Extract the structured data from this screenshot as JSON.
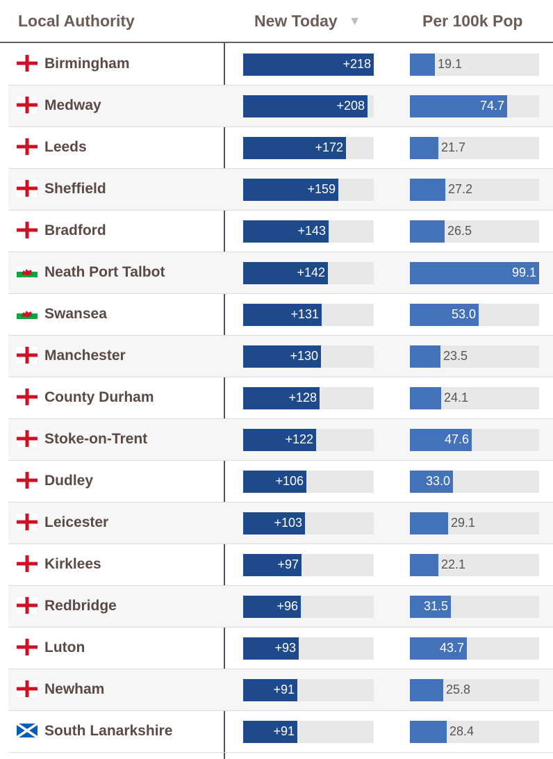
{
  "columns": {
    "authority": "Local Authority",
    "new_today": "New Today",
    "per_100k": "Per 100k Pop",
    "sort_icon": "▼"
  },
  "chart_data": {
    "type": "table",
    "columns": [
      "Local Authority",
      "New Today",
      "Per 100k Pop"
    ],
    "sorted_by": "New Today",
    "sort_order": "descending",
    "new_today_max": 218,
    "per_100k_max": 99.1,
    "rows": [
      {
        "nation": "england",
        "flag_icon": "england-flag-icon",
        "authority": "Birmingham",
        "new_today_label": "+218",
        "new_today": 218,
        "per_100k_label": "19.1",
        "per_100k": 19.1
      },
      {
        "nation": "england",
        "flag_icon": "england-flag-icon",
        "authority": "Medway",
        "new_today_label": "+208",
        "new_today": 208,
        "per_100k_label": "74.7",
        "per_100k": 74.7
      },
      {
        "nation": "england",
        "flag_icon": "england-flag-icon",
        "authority": "Leeds",
        "new_today_label": "+172",
        "new_today": 172,
        "per_100k_label": "21.7",
        "per_100k": 21.7
      },
      {
        "nation": "england",
        "flag_icon": "england-flag-icon",
        "authority": "Sheffield",
        "new_today_label": "+159",
        "new_today": 159,
        "per_100k_label": "27.2",
        "per_100k": 27.2
      },
      {
        "nation": "england",
        "flag_icon": "england-flag-icon",
        "authority": "Bradford",
        "new_today_label": "+143",
        "new_today": 143,
        "per_100k_label": "26.5",
        "per_100k": 26.5
      },
      {
        "nation": "wales",
        "flag_icon": "wales-flag-icon",
        "authority": "Neath Port Talbot",
        "new_today_label": "+142",
        "new_today": 142,
        "per_100k_label": "99.1",
        "per_100k": 99.1
      },
      {
        "nation": "wales",
        "flag_icon": "wales-flag-icon",
        "authority": "Swansea",
        "new_today_label": "+131",
        "new_today": 131,
        "per_100k_label": "53.0",
        "per_100k": 53.0
      },
      {
        "nation": "england",
        "flag_icon": "england-flag-icon",
        "authority": "Manchester",
        "new_today_label": "+130",
        "new_today": 130,
        "per_100k_label": "23.5",
        "per_100k": 23.5
      },
      {
        "nation": "england",
        "flag_icon": "england-flag-icon",
        "authority": "County Durham",
        "new_today_label": "+128",
        "new_today": 128,
        "per_100k_label": "24.1",
        "per_100k": 24.1
      },
      {
        "nation": "england",
        "flag_icon": "england-flag-icon",
        "authority": "Stoke-on-Trent",
        "new_today_label": "+122",
        "new_today": 122,
        "per_100k_label": "47.6",
        "per_100k": 47.6
      },
      {
        "nation": "england",
        "flag_icon": "england-flag-icon",
        "authority": "Dudley",
        "new_today_label": "+106",
        "new_today": 106,
        "per_100k_label": "33.0",
        "per_100k": 33.0
      },
      {
        "nation": "england",
        "flag_icon": "england-flag-icon",
        "authority": "Leicester",
        "new_today_label": "+103",
        "new_today": 103,
        "per_100k_label": "29.1",
        "per_100k": 29.1
      },
      {
        "nation": "england",
        "flag_icon": "england-flag-icon",
        "authority": "Kirklees",
        "new_today_label": "+97",
        "new_today": 97,
        "per_100k_label": "22.1",
        "per_100k": 22.1
      },
      {
        "nation": "england",
        "flag_icon": "england-flag-icon",
        "authority": "Redbridge",
        "new_today_label": "+96",
        "new_today": 96,
        "per_100k_label": "31.5",
        "per_100k": 31.5
      },
      {
        "nation": "england",
        "flag_icon": "england-flag-icon",
        "authority": "Luton",
        "new_today_label": "+93",
        "new_today": 93,
        "per_100k_label": "43.7",
        "per_100k": 43.7
      },
      {
        "nation": "england",
        "flag_icon": "england-flag-icon",
        "authority": "Newham",
        "new_today_label": "+91",
        "new_today": 91,
        "per_100k_label": "25.8",
        "per_100k": 25.8
      },
      {
        "nation": "scotland",
        "flag_icon": "scotland-flag-icon",
        "authority": "South Lanarkshire",
        "new_today_label": "+91",
        "new_today": 91,
        "per_100k_label": "28.4",
        "per_100k": 28.4
      }
    ]
  },
  "colors": {
    "header_text": "#6b5d56",
    "name_text": "#5b4a43",
    "new_bar": "#1e4a8c",
    "per_bar": "#4472b8",
    "track": "#e8e8e8",
    "england_red": "#ce1124",
    "wales_green": "#00ab39",
    "scotland_blue": "#005eb8"
  }
}
